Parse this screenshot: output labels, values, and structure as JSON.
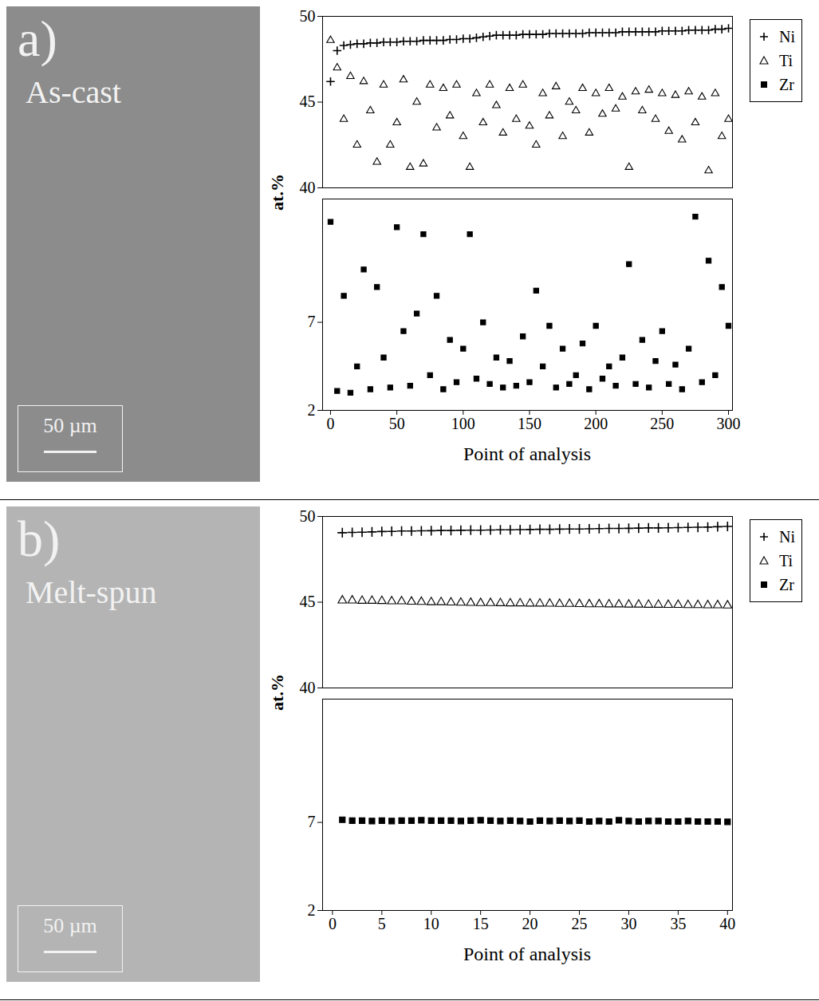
{
  "chart_data": [
    {
      "type": "scatter",
      "panel_label": "a)",
      "annotations": [
        "As-cast",
        "50 µm"
      ],
      "x_label": "Point of analysis",
      "y_label": "at.%",
      "x": [
        0,
        5,
        10,
        15,
        20,
        25,
        30,
        35,
        40,
        45,
        50,
        55,
        60,
        65,
        70,
        75,
        80,
        85,
        90,
        95,
        100,
        105,
        110,
        115,
        120,
        125,
        130,
        135,
        140,
        145,
        150,
        155,
        160,
        165,
        170,
        175,
        180,
        185,
        190,
        195,
        200,
        205,
        210,
        215,
        220,
        225,
        230,
        235,
        240,
        245,
        250,
        255,
        260,
        265,
        270,
        275,
        280,
        285,
        290,
        295,
        300
      ],
      "xlim": [
        -6,
        303
      ],
      "xticks": [
        0,
        50,
        100,
        150,
        200,
        250,
        300
      ],
      "ylim": [
        [
          2,
          14
        ],
        [
          40,
          50
        ]
      ],
      "yticks": [
        [
          2,
          7
        ],
        [
          40,
          45,
          50
        ]
      ],
      "legend": "right",
      "series": [
        {
          "name": "Ni",
          "color": "#000000",
          "marker": "plus",
          "values": [
            46.2,
            48.0,
            48.3,
            48.35,
            48.4,
            48.4,
            48.45,
            48.45,
            48.5,
            48.5,
            48.5,
            48.55,
            48.55,
            48.55,
            48.6,
            48.6,
            48.6,
            48.6,
            48.65,
            48.65,
            48.7,
            48.7,
            48.75,
            48.8,
            48.85,
            48.9,
            48.9,
            48.9,
            48.9,
            48.95,
            48.95,
            48.95,
            48.95,
            49.0,
            49.0,
            49.0,
            49.0,
            49.0,
            49.0,
            49.05,
            49.05,
            49.05,
            49.05,
            49.05,
            49.1,
            49.1,
            49.1,
            49.1,
            49.1,
            49.1,
            49.15,
            49.15,
            49.15,
            49.15,
            49.2,
            49.2,
            49.2,
            49.2,
            49.25,
            49.25,
            49.3
          ]
        },
        {
          "name": "Ti",
          "color": "#000000",
          "marker": "triangle",
          "values": [
            48.6,
            47.0,
            44.0,
            46.5,
            42.5,
            46.2,
            44.5,
            41.5,
            46.0,
            42.5,
            43.8,
            46.3,
            41.2,
            45.0,
            41.4,
            46.0,
            43.5,
            45.8,
            44.2,
            46.0,
            43.0,
            41.2,
            45.5,
            43.8,
            46.0,
            44.8,
            43.2,
            45.8,
            44.0,
            46.0,
            43.6,
            42.5,
            45.5,
            44.2,
            45.9,
            43.0,
            45.0,
            44.5,
            45.8,
            43.2,
            45.5,
            44.3,
            45.8,
            44.6,
            45.3,
            41.2,
            45.6,
            44.5,
            45.7,
            44.0,
            45.5,
            43.3,
            45.4,
            42.8,
            45.6,
            43.8,
            45.3,
            41.0,
            45.5,
            43.0,
            44.0
          ]
        },
        {
          "name": "Zr",
          "color": "#000000",
          "marker": "square",
          "values": [
            12.7,
            3.1,
            8.5,
            3.0,
            4.5,
            10.0,
            3.2,
            9.0,
            5.0,
            3.3,
            12.4,
            6.5,
            3.4,
            7.5,
            12.0,
            4.0,
            8.5,
            3.2,
            6.0,
            3.6,
            5.5,
            12.0,
            3.8,
            7.0,
            3.5,
            5.0,
            3.3,
            4.8,
            3.4,
            6.2,
            3.6,
            8.8,
            4.5,
            6.8,
            3.3,
            5.5,
            3.5,
            4.0,
            5.8,
            3.2,
            6.8,
            3.8,
            4.5,
            3.4,
            5.0,
            10.3,
            3.5,
            6.0,
            3.3,
            4.8,
            6.5,
            3.5,
            4.6,
            3.2,
            5.5,
            13.0,
            3.6,
            10.5,
            4.0,
            9.0,
            6.8
          ]
        }
      ]
    },
    {
      "type": "scatter",
      "panel_label": "b)",
      "annotations": [
        "Melt-spun",
        "50 µm"
      ],
      "x_label": "Point of analysis",
      "y_label": "at.%",
      "x": [
        1,
        2,
        3,
        4,
        5,
        6,
        7,
        8,
        9,
        10,
        11,
        12,
        13,
        14,
        15,
        16,
        17,
        18,
        19,
        20,
        21,
        22,
        23,
        24,
        25,
        26,
        27,
        28,
        29,
        30,
        31,
        32,
        33,
        34,
        35,
        36,
        37,
        38,
        39,
        40
      ],
      "xlim": [
        -1,
        40.5
      ],
      "xticks": [
        0,
        5,
        10,
        15,
        20,
        25,
        30,
        35,
        40
      ],
      "ylim": [
        [
          2,
          14
        ],
        [
          40,
          50
        ]
      ],
      "yticks": [
        [
          2,
          7
        ],
        [
          40,
          45,
          50
        ]
      ],
      "legend": "right",
      "series": [
        {
          "name": "Ni",
          "color": "#000000",
          "marker": "plus",
          "values": [
            49.05,
            49.07,
            49.08,
            49.1,
            49.12,
            49.13,
            49.15,
            49.15,
            49.16,
            49.17,
            49.18,
            49.18,
            49.19,
            49.2,
            49.2,
            49.21,
            49.22,
            49.22,
            49.23,
            49.24,
            49.25,
            49.25,
            49.26,
            49.27,
            49.27,
            49.28,
            49.29,
            49.3,
            49.3,
            49.31,
            49.32,
            49.33,
            49.33,
            49.34,
            49.35,
            49.36,
            49.37,
            49.38,
            49.4,
            49.42
          ]
        },
        {
          "name": "Ti",
          "color": "#000000",
          "marker": "triangle",
          "values": [
            45.1,
            45.1,
            45.08,
            45.08,
            45.07,
            45.05,
            45.05,
            45.03,
            45.02,
            45.0,
            45.0,
            44.98,
            44.97,
            44.96,
            44.95,
            44.95,
            44.94,
            44.93,
            44.93,
            44.92,
            44.92,
            44.91,
            44.9,
            44.9,
            44.89,
            44.88,
            44.88,
            44.87,
            44.87,
            44.86,
            44.86,
            44.85,
            44.85,
            44.84,
            44.84,
            44.83,
            44.83,
            44.82,
            44.82,
            44.81
          ]
        },
        {
          "name": "Zr",
          "color": "#000000",
          "marker": "square",
          "values": [
            7.15,
            7.1,
            7.1,
            7.08,
            7.1,
            7.08,
            7.1,
            7.1,
            7.12,
            7.1,
            7.1,
            7.1,
            7.08,
            7.1,
            7.12,
            7.1,
            7.08,
            7.1,
            7.08,
            7.05,
            7.1,
            7.08,
            7.1,
            7.08,
            7.1,
            7.05,
            7.08,
            7.05,
            7.12,
            7.08,
            7.05,
            7.08,
            7.08,
            7.05,
            7.05,
            7.08,
            7.05,
            7.05,
            7.05,
            7.03
          ]
        }
      ]
    }
  ]
}
